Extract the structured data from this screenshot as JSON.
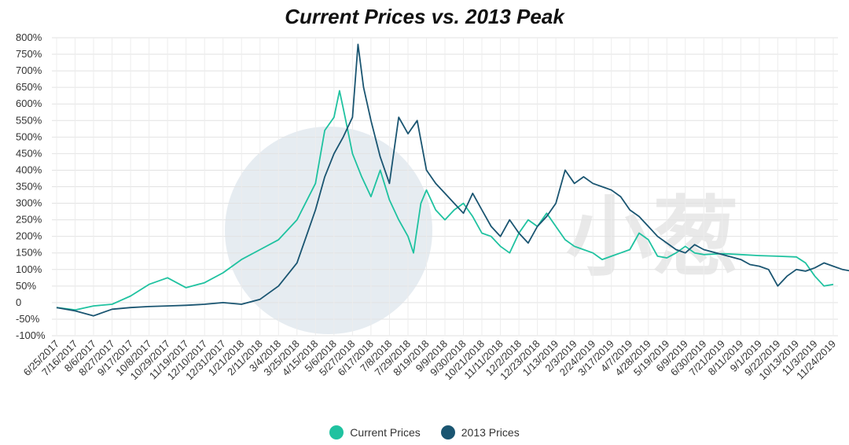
{
  "chart_data": {
    "type": "line",
    "title": "Current Prices vs. 2013 Peak",
    "xlabel": "",
    "ylabel": "",
    "ylim": [
      -100,
      800
    ],
    "yticks": [
      "800%",
      "750%",
      "700%",
      "650%",
      "600%",
      "550%",
      "500%",
      "450%",
      "400%",
      "350%",
      "300%",
      "250%",
      "200%",
      "150%",
      "100%",
      "50%",
      "0",
      "-50%",
      "-100%"
    ],
    "x_tick_labels": [
      "6/25/2017",
      "7/16/2017",
      "8/6/2017",
      "8/27/2017",
      "9/17/2017",
      "10/8/2017",
      "10/29/2017",
      "11/19/2017",
      "12/10/2017",
      "12/31/2017",
      "1/21/2018",
      "2/11/2018",
      "3/4/2018",
      "3/25/2018",
      "4/15/2018",
      "5/6/2018",
      "5/27/2018",
      "6/17/2018",
      "7/8/2018",
      "7/29/2018",
      "8/19/2018",
      "9/9/2018",
      "9/30/2018",
      "10/21/2018",
      "11/11/2018",
      "12/2/2018",
      "12/23/2018",
      "1/13/2019",
      "2/3/2019",
      "2/24/2019",
      "3/17/2019",
      "4/7/2019",
      "4/28/2019",
      "5/19/2019",
      "6/9/2019",
      "6/30/2019",
      "7/21/2019",
      "8/11/2019",
      "9/1/2019",
      "9/22/2019",
      "10/13/2019",
      "11/3/2019",
      "11/24/2019"
    ],
    "grid": true,
    "legend_position": "bottom",
    "series": [
      {
        "name": "Current Prices",
        "color": "#1fc2a0",
        "points": [
          [
            0,
            -15
          ],
          [
            1,
            -22
          ],
          [
            2,
            -10
          ],
          [
            3,
            -5
          ],
          [
            4,
            20
          ],
          [
            5,
            55
          ],
          [
            6,
            75
          ],
          [
            7,
            45
          ],
          [
            8,
            60
          ],
          [
            9,
            90
          ],
          [
            10,
            130
          ],
          [
            11,
            160
          ],
          [
            12,
            190
          ],
          [
            13,
            250
          ],
          [
            14,
            360
          ],
          [
            14.5,
            520
          ],
          [
            15,
            560
          ],
          [
            15.3,
            640
          ],
          [
            15.6,
            560
          ],
          [
            16,
            450
          ],
          [
            16.5,
            380
          ],
          [
            17,
            320
          ],
          [
            17.5,
            400
          ],
          [
            18,
            310
          ],
          [
            18.5,
            250
          ],
          [
            19,
            200
          ],
          [
            19.3,
            150
          ],
          [
            19.7,
            300
          ],
          [
            20,
            340
          ],
          [
            20.5,
            280
          ],
          [
            21,
            250
          ],
          [
            21.5,
            280
          ],
          [
            22,
            300
          ],
          [
            22.5,
            260
          ],
          [
            23,
            210
          ],
          [
            23.5,
            200
          ],
          [
            24,
            170
          ],
          [
            24.5,
            150
          ],
          [
            25,
            210
          ],
          [
            25.5,
            250
          ],
          [
            26,
            230
          ],
          [
            26.5,
            270
          ],
          [
            27,
            230
          ],
          [
            27.5,
            190
          ],
          [
            28,
            170
          ],
          [
            28.5,
            160
          ],
          [
            29,
            150
          ],
          [
            29.5,
            130
          ],
          [
            30,
            140
          ],
          [
            30.5,
            150
          ],
          [
            31,
            160
          ],
          [
            31.5,
            210
          ],
          [
            32,
            190
          ],
          [
            32.5,
            140
          ],
          [
            33,
            135
          ],
          [
            33.5,
            150
          ],
          [
            34,
            170
          ],
          [
            34.5,
            150
          ],
          [
            35,
            145
          ],
          [
            36,
            148
          ],
          [
            37,
            145
          ],
          [
            38,
            142
          ],
          [
            39,
            140
          ],
          [
            40,
            138
          ],
          [
            40.5,
            120
          ],
          [
            41,
            80
          ],
          [
            41.5,
            50
          ],
          [
            42,
            55
          ]
        ]
      },
      {
        "name": "2013 Prices",
        "color": "#1a5571",
        "points": [
          [
            0,
            -15
          ],
          [
            1,
            -25
          ],
          [
            2,
            -40
          ],
          [
            3,
            -20
          ],
          [
            4,
            -15
          ],
          [
            5,
            -12
          ],
          [
            6,
            -10
          ],
          [
            7,
            -8
          ],
          [
            8,
            -5
          ],
          [
            9,
            0
          ],
          [
            10,
            -5
          ],
          [
            11,
            10
          ],
          [
            12,
            50
          ],
          [
            13,
            120
          ],
          [
            13.5,
            200
          ],
          [
            14,
            280
          ],
          [
            14.5,
            380
          ],
          [
            15,
            450
          ],
          [
            15.5,
            500
          ],
          [
            16,
            560
          ],
          [
            16.3,
            780
          ],
          [
            16.6,
            650
          ],
          [
            17,
            550
          ],
          [
            17.5,
            440
          ],
          [
            18,
            360
          ],
          [
            18.5,
            560
          ],
          [
            19,
            510
          ],
          [
            19.5,
            550
          ],
          [
            20,
            400
          ],
          [
            20.5,
            360
          ],
          [
            21,
            330
          ],
          [
            21.5,
            300
          ],
          [
            22,
            270
          ],
          [
            22.5,
            330
          ],
          [
            23,
            280
          ],
          [
            23.5,
            230
          ],
          [
            24,
            200
          ],
          [
            24.5,
            250
          ],
          [
            25,
            210
          ],
          [
            25.5,
            180
          ],
          [
            26,
            230
          ],
          [
            26.5,
            260
          ],
          [
            27,
            300
          ],
          [
            27.5,
            400
          ],
          [
            28,
            360
          ],
          [
            28.5,
            380
          ],
          [
            29,
            360
          ],
          [
            29.5,
            350
          ],
          [
            30,
            340
          ],
          [
            30.5,
            320
          ],
          [
            31,
            280
          ],
          [
            31.5,
            260
          ],
          [
            32,
            230
          ],
          [
            32.5,
            200
          ],
          [
            33,
            180
          ],
          [
            33.5,
            160
          ],
          [
            34,
            150
          ],
          [
            34.5,
            175
          ],
          [
            35,
            160
          ],
          [
            36,
            145
          ],
          [
            37,
            130
          ],
          [
            37.5,
            115
          ],
          [
            38,
            110
          ],
          [
            38.5,
            100
          ],
          [
            39,
            50
          ],
          [
            39.5,
            80
          ],
          [
            40,
            100
          ],
          [
            40.5,
            95
          ],
          [
            41,
            105
          ],
          [
            41.5,
            120
          ],
          [
            42,
            110
          ],
          [
            42.5,
            100
          ],
          [
            43,
            95
          ],
          [
            44,
            90
          ],
          [
            45,
            80
          ],
          [
            46,
            85
          ],
          [
            47,
            90
          ],
          [
            48,
            85
          ],
          [
            49,
            95
          ],
          [
            50,
            115
          ],
          [
            51,
            110
          ],
          [
            52,
            100
          ],
          [
            53,
            85
          ],
          [
            54,
            90
          ],
          [
            55,
            95
          ],
          [
            56,
            85
          ],
          [
            57,
            90
          ],
          [
            58,
            95
          ],
          [
            59,
            105
          ],
          [
            60,
            150
          ],
          [
            60.5,
            175
          ],
          [
            61,
            200
          ],
          [
            61.3,
            230
          ],
          [
            61.6,
            190
          ]
        ]
      }
    ]
  },
  "legend": {
    "items": [
      {
        "label": "Current Prices",
        "color": "#1fc2a0"
      },
      {
        "label": "2013 Prices",
        "color": "#1a5571"
      }
    ]
  },
  "watermark_text": "小葱"
}
